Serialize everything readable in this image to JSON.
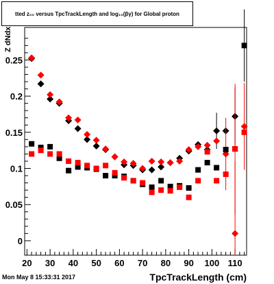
{
  "title": "tted z_{#pi} versus TpcTrackLength and log_{10}(βγ) for Global proton",
  "title_display": "tted  z₀₀  versus TpcTrackLength and log₁₀(βγ) for Global proton",
  "timestamp": "Mon May  8 15:33:31 2017",
  "chart_data": {
    "type": "scatter",
    "xlabel": "TpcTrackLength (cm)",
    "ylabel": "Z dNdx",
    "xlim": [
      19,
      115
    ],
    "ylim": [
      -0.02,
      0.295
    ],
    "x_ticks": [
      20,
      30,
      40,
      50,
      60,
      70,
      80,
      90,
      100,
      110
    ],
    "y_ticks": [
      0,
      0.05,
      0.1,
      0.15,
      0.2,
      0.25
    ],
    "y_tick_labels": [
      "0",
      "0.05",
      "0.1",
      "0.15",
      "0.2",
      "0.25"
    ],
    "series": [
      {
        "marker": "diamond",
        "color": "#000000",
        "points": [
          [
            22,
            0.252
          ],
          [
            26,
            0.217
          ],
          [
            30,
            0.196
          ],
          [
            34,
            0.19
          ],
          [
            38,
            0.166
          ],
          [
            42,
            0.155
          ],
          [
            46,
            0.14
          ],
          [
            50,
            0.131
          ],
          [
            54,
            0.126
          ],
          [
            58,
            0.116
          ],
          [
            62,
            0.105
          ],
          [
            66,
            0.104
          ],
          [
            70,
            0.098
          ],
          [
            74,
            0.098
          ],
          [
            78,
            0.102
          ],
          [
            82,
            0.108
          ],
          [
            86,
            0.114
          ],
          [
            90,
            0.124
          ],
          [
            94,
            0.133
          ],
          [
            98,
            0.126
          ],
          [
            102,
            0.152
          ],
          [
            106,
            0.152
          ],
          [
            110,
            0.172
          ]
        ]
      },
      {
        "marker": "diamond",
        "color": "#ff0000",
        "points": [
          [
            22,
            0.253
          ],
          [
            26,
            0.229
          ],
          [
            30,
            0.202
          ],
          [
            34,
            0.192
          ],
          [
            38,
            0.17
          ],
          [
            42,
            0.167
          ],
          [
            46,
            0.147
          ],
          [
            50,
            0.139
          ],
          [
            54,
            0.127
          ],
          [
            58,
            0.116
          ],
          [
            62,
            0.109
          ],
          [
            66,
            0.107
          ],
          [
            70,
            0.1
          ],
          [
            74,
            0.11
          ],
          [
            78,
            0.109
          ],
          [
            82,
            0.108
          ],
          [
            86,
            0.11
          ],
          [
            90,
            0.126
          ],
          [
            94,
            0.13
          ],
          [
            98,
            0.132
          ],
          [
            102,
            0.138
          ],
          [
            106,
            0.12
          ],
          [
            110,
            0.01
          ],
          [
            114,
            0.158
          ]
        ]
      },
      {
        "marker": "square",
        "color": "#000000",
        "points": [
          [
            22,
            0.134
          ],
          [
            26,
            0.129
          ],
          [
            30,
            0.13
          ],
          [
            34,
            0.114
          ],
          [
            38,
            0.097
          ],
          [
            42,
            0.102
          ],
          [
            46,
            0.101
          ],
          [
            50,
            0.099
          ],
          [
            54,
            0.09
          ],
          [
            58,
            0.09
          ],
          [
            62,
            0.089
          ],
          [
            66,
            0.083
          ],
          [
            70,
            0.078
          ],
          [
            74,
            0.074
          ],
          [
            78,
            0.083
          ],
          [
            82,
            0.075
          ],
          [
            86,
            0.076
          ],
          [
            90,
            0.073
          ],
          [
            94,
            0.098
          ],
          [
            98,
            0.108
          ],
          [
            102,
            0.101
          ],
          [
            106,
            0.126
          ],
          [
            110,
            0.127
          ],
          [
            114,
            0.27
          ]
        ]
      },
      {
        "marker": "square",
        "color": "#ff0000",
        "points": [
          [
            22,
            0.12
          ],
          [
            26,
            0.125
          ],
          [
            30,
            0.12
          ],
          [
            34,
            0.12
          ],
          [
            38,
            0.11
          ],
          [
            42,
            0.108
          ],
          [
            46,
            0.104
          ],
          [
            50,
            0.1
          ],
          [
            54,
            0.104
          ],
          [
            58,
            0.094
          ],
          [
            62,
            0.087
          ],
          [
            66,
            0.083
          ],
          [
            70,
            0.08
          ],
          [
            74,
            0.067
          ],
          [
            78,
            0.07
          ],
          [
            82,
            0.069
          ],
          [
            86,
            0.074
          ],
          [
            90,
            0.06
          ],
          [
            94,
            0.083
          ],
          [
            98,
            0.123
          ],
          [
            102,
            0.083
          ],
          [
            106,
            0.092
          ],
          [
            110,
            0.127
          ],
          [
            114,
            0.15
          ]
        ]
      }
    ]
  }
}
